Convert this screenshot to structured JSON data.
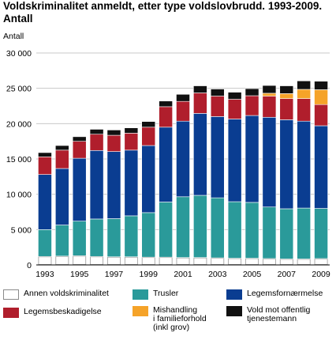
{
  "chart_data": {
    "type": "stacked-bar",
    "title": "Voldskriminalitet anmeldt, etter type voldslovbrudd. 1993-2009.",
    "subtitle": "Antall",
    "ylabel": "Antall",
    "ylim": [
      0,
      30000
    ],
    "yticks": [
      "0",
      "5 000",
      "10 000",
      "15 000",
      "20 000",
      "25 000",
      "30 000"
    ],
    "ytick_values": [
      0,
      5000,
      10000,
      15000,
      20000,
      25000,
      30000
    ],
    "grid": true,
    "legend_position": "bottom",
    "categories": [
      "1993",
      "1994",
      "1995",
      "1996",
      "1997",
      "1998",
      "1999",
      "2000",
      "2001",
      "2002",
      "2003",
      "2004",
      "2005",
      "2006",
      "2007",
      "2008",
      "2009"
    ],
    "xtick_labels": [
      "1993",
      "",
      "1995",
      "",
      "1997",
      "",
      "1999",
      "",
      "2001",
      "",
      "2003",
      "",
      "2005",
      "",
      "2007",
      "",
      "2009"
    ],
    "series": [
      {
        "name": "Annen voldskriminalitet",
        "color": "#ffffff",
        "values": [
          1200,
          1250,
          1300,
          1200,
          1150,
          1150,
          1100,
          1100,
          1050,
          1050,
          1000,
          950,
          950,
          900,
          850,
          850,
          900
        ]
      },
      {
        "name": "Trusler",
        "color": "#2a9a9a",
        "values": [
          3800,
          4400,
          4900,
          5300,
          5400,
          5800,
          6300,
          7800,
          8600,
          8800,
          8500,
          8000,
          7900,
          7300,
          7100,
          7200,
          7100
        ]
      },
      {
        "name": "Legemsfornærmelse",
        "color": "#0a3d91",
        "values": [
          7800,
          8000,
          8900,
          9700,
          9500,
          9300,
          9500,
          10600,
          10700,
          11600,
          11500,
          11700,
          12300,
          12700,
          12600,
          12300,
          11700
        ]
      },
      {
        "name": "Legemsbeskadigelse",
        "color": "#b01e2c",
        "values": [
          2500,
          2600,
          2400,
          2300,
          2300,
          2400,
          2600,
          2900,
          2800,
          2900,
          2900,
          2800,
          2800,
          3000,
          3000,
          3200,
          3000
        ]
      },
      {
        "name": "Mishandling\ni familieforhold\n(inkl grov)",
        "color": "#f5a329",
        "values": [
          0,
          0,
          0,
          0,
          0,
          0,
          0,
          0,
          0,
          0,
          0,
          0,
          0,
          400,
          700,
          1300,
          2100
        ]
      },
      {
        "name": "Vold mot offentlig\ntjenestemann",
        "color": "#111111",
        "values": [
          600,
          650,
          650,
          700,
          750,
          750,
          800,
          800,
          1000,
          1000,
          1000,
          1000,
          1000,
          1100,
          1100,
          1200,
          1200
        ]
      }
    ]
  }
}
